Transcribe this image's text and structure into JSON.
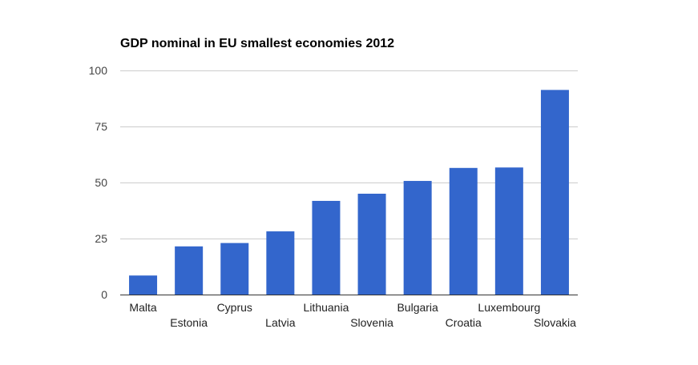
{
  "chart_data": {
    "type": "bar",
    "title": "GDP nominal in EU smallest economies 2012",
    "xlabel": "",
    "ylabel": "",
    "categories": [
      "Malta",
      "Estonia",
      "Cyprus",
      "Latvia",
      "Lithuania",
      "Slovenia",
      "Bulgaria",
      "Croatia",
      "Luxembourg",
      "Slovakia"
    ],
    "values": [
      8.5,
      21.5,
      23,
      28.2,
      41.8,
      45,
      50.7,
      56.5,
      56.7,
      91.3
    ],
    "ylim": [
      0,
      100
    ],
    "yticks": [
      0,
      25,
      50,
      75,
      100
    ],
    "grid": true,
    "legend": "none",
    "bar_color": "#3366cc",
    "grid_color": "#cccccc",
    "axis_color": "#333333"
  }
}
